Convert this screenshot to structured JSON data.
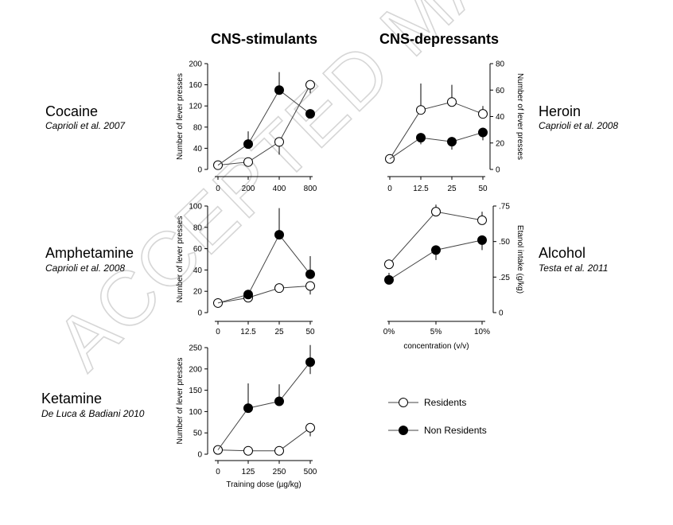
{
  "columns": {
    "stimulants": "CNS-stimulants",
    "depressants": "CNS-depressants"
  },
  "watermark": "ACCEPTED MANUSCRIPT",
  "drugs": {
    "cocaine": {
      "name": "Cocaine",
      "ref": "Caprioli et al. 2007"
    },
    "heroin": {
      "name": "Heroin",
      "ref": "Caprioli et al. 2008"
    },
    "amphetamine": {
      "name": "Amphetamine",
      "ref": "Caprioli et al. 2008"
    },
    "alcohol": {
      "name": "Alcohol",
      "ref": "Testa et al. 2011"
    },
    "ketamine": {
      "name": "Ketamine",
      "ref": "De Luca & Badiani 2010"
    }
  },
  "legend": {
    "residents": "Residents",
    "non_residents": "Non Residents"
  },
  "colors": {
    "ink": "#000000",
    "line": "#444444",
    "open_fill": "#ffffff",
    "watermark": "#d6d6d6"
  },
  "chart_data": [
    {
      "id": "cocaine",
      "type": "line",
      "ylabel": "Number of lever presses",
      "xlabel": "",
      "categories": [
        "0",
        "200",
        "400",
        "800"
      ],
      "yticks": [
        0,
        40,
        80,
        120,
        160,
        200
      ],
      "ylim": [
        0,
        200
      ],
      "yaxis": "left",
      "series": [
        {
          "name": "Residents",
          "values": [
            8,
            14,
            52,
            160
          ],
          "err_up": [
            0,
            0,
            0,
            0
          ],
          "err_down": [
            0,
            0,
            24,
            16
          ]
        },
        {
          "name": "Non Residents",
          "values": [
            0,
            48,
            150,
            105
          ],
          "err_up": [
            0,
            24,
            34,
            0
          ],
          "err_down": [
            0,
            0,
            0,
            0
          ],
          "points": [
            1,
            2,
            3
          ]
        }
      ]
    },
    {
      "id": "heroin",
      "type": "line",
      "ylabel": "Number of lever presses",
      "xlabel": "",
      "categories": [
        "0",
        "12.5",
        "25",
        "50"
      ],
      "yticks": [
        0,
        20,
        40,
        60,
        80
      ],
      "ylim": [
        0,
        80
      ],
      "yaxis": "right",
      "series": [
        {
          "name": "Residents",
          "values": [
            8,
            45,
            51,
            42
          ],
          "err_up": [
            0,
            20,
            13,
            6
          ],
          "err_down": [
            0,
            0,
            0,
            0
          ]
        },
        {
          "name": "Non Residents",
          "values": [
            8,
            24,
            21,
            28
          ],
          "err_up": [
            0,
            0,
            0,
            0
          ],
          "err_down": [
            0,
            5,
            6,
            6
          ],
          "points": [
            1,
            2,
            3
          ]
        }
      ]
    },
    {
      "id": "amphetamine",
      "type": "line",
      "ylabel": "Number of lever presses",
      "xlabel": "",
      "categories": [
        "0",
        "12.5",
        "25",
        "50"
      ],
      "yticks": [
        0,
        20,
        40,
        60,
        80,
        100
      ],
      "ylim": [
        0,
        100
      ],
      "yaxis": "left",
      "series": [
        {
          "name": "Residents",
          "values": [
            9,
            14,
            23,
            25
          ],
          "err_up": [
            0,
            0,
            0,
            0
          ],
          "err_down": [
            0,
            0,
            0,
            8
          ]
        },
        {
          "name": "Non Residents",
          "values": [
            9,
            17,
            73,
            36
          ],
          "err_up": [
            0,
            0,
            25,
            17
          ],
          "err_down": [
            0,
            0,
            0,
            0
          ],
          "points": [
            1,
            2,
            3
          ]
        }
      ]
    },
    {
      "id": "alcohol",
      "type": "line",
      "ylabel": "Etanol intake (g/kg)",
      "xlabel": "concentration (v/v)",
      "categories": [
        "0%",
        "5%",
        "10%"
      ],
      "yticks": [
        0,
        0.25,
        0.5,
        0.75
      ],
      "ytick_labels": [
        "0",
        ".25",
        ".50",
        ".75"
      ],
      "ylim": [
        0,
        0.75
      ],
      "yaxis": "right",
      "series": [
        {
          "name": "Residents",
          "values": [
            0.34,
            0.71,
            0.65
          ],
          "err_up": [
            0,
            0.05,
            0.06
          ],
          "err_down": [
            0,
            0,
            0
          ]
        },
        {
          "name": "Non Residents",
          "values": [
            0.23,
            0.44,
            0.51
          ],
          "err_up": [
            0.05,
            0,
            0
          ],
          "err_down": [
            0,
            0.07,
            0.07
          ]
        }
      ]
    },
    {
      "id": "ketamine",
      "type": "line",
      "ylabel": "Number of lever presses",
      "xlabel": "Training dose (µg/kg)",
      "categories": [
        "0",
        "125",
        "250",
        "500"
      ],
      "yticks": [
        0,
        50,
        100,
        150,
        200,
        250
      ],
      "ylim": [
        0,
        250
      ],
      "yaxis": "left",
      "series": [
        {
          "name": "Residents",
          "values": [
            10,
            8,
            8,
            62
          ],
          "err_up": [
            0,
            0,
            0,
            0
          ],
          "err_down": [
            0,
            0,
            0,
            20
          ]
        },
        {
          "name": "Non Residents",
          "values": [
            10,
            108,
            124,
            216
          ],
          "err_up": [
            0,
            58,
            40,
            40
          ],
          "err_down": [
            0,
            0,
            0,
            28
          ],
          "points": [
            1,
            2,
            3
          ]
        }
      ]
    }
  ]
}
